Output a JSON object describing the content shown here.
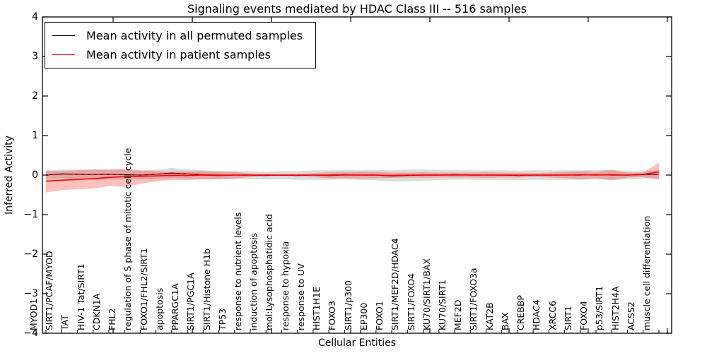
{
  "chart_data": {
    "type": "line",
    "title": "Signaling events mediated by HDAC Class III -- 516 samples",
    "xlabel": "Cellular Entities",
    "ylabel": "Inferred Activity",
    "ylim": [
      -4,
      4
    ],
    "yticks": [
      4,
      3,
      2,
      1,
      0,
      -1,
      -2,
      -3,
      -4
    ],
    "grid": false,
    "legend_position": "upper left",
    "categories": [
      "MYOD1",
      "SIRT1/PCAF/MYOD",
      "TAT",
      "HIV-1 Tat/SIRT1",
      "CDKN1A",
      "FHL2",
      "regulation of S phase of mitotic cell cycle",
      "FOXO1/FHL2/SIRT1",
      "apoptosis",
      "PPARGC1A",
      "SIRT1/PGC1A",
      "SIRT1/Histone H1b",
      "TP53",
      "response to nutrient levels",
      "induction of apoptosis",
      "mol:Lysophosphatidic acid",
      "response to hypoxia",
      "response to UV",
      "HIST1H1E",
      "FOXO3",
      "SIRT1/p300",
      "EP300",
      "FOXO1",
      "SIRT1/MEF2D/HDAC4",
      "SIRT1/FOXO4",
      "KU70/SIRT1/BAX",
      "KU70/SIRT1",
      "MEF2D",
      "SIRT1/FOXO3a",
      "KAT2B",
      "BAX",
      "CREBBP",
      "HDAC4",
      "XRCC6",
      "SIRT1",
      "FOXO4",
      "p53/SIRT1",
      "HIST2H4A",
      "ACSS2",
      "muscle cell differentiation"
    ],
    "series": [
      {
        "name": "Mean activity in all permuted samples",
        "color": "#000000",
        "line_style": "solid",
        "band_color": "rgba(128,128,128,0.28)",
        "values": [
          0.0,
          0.03,
          0.02,
          0.01,
          0.02,
          0.01,
          0.0,
          0.02,
          0.05,
          0.03,
          0.01,
          0.0,
          0.0,
          0.0,
          -0.01,
          0.0,
          -0.01,
          0.0,
          0.0,
          0.01,
          0.0,
          0.0,
          -0.02,
          -0.01,
          0.0,
          0.0,
          0.01,
          0.0,
          0.0,
          0.0,
          -0.01,
          0.0,
          0.0,
          0.0,
          0.0,
          0.01,
          0.0,
          0.0,
          0.01,
          0.02
        ],
        "band_upper": [
          0.1,
          0.14,
          0.14,
          0.14,
          0.15,
          0.13,
          0.11,
          0.14,
          0.18,
          0.15,
          0.12,
          0.1,
          0.1,
          0.1,
          0.09,
          0.1,
          0.1,
          0.12,
          0.12,
          0.13,
          0.12,
          0.13,
          0.12,
          0.14,
          0.14,
          0.13,
          0.13,
          0.12,
          0.12,
          0.12,
          0.11,
          0.12,
          0.12,
          0.12,
          0.12,
          0.13,
          0.12,
          0.11,
          0.11,
          0.12
        ],
        "band_lower": [
          -0.1,
          -0.08,
          -0.1,
          -0.12,
          -0.11,
          -0.11,
          -0.11,
          -0.1,
          -0.08,
          -0.09,
          -0.1,
          -0.1,
          -0.1,
          -0.1,
          -0.11,
          -0.1,
          -0.12,
          -0.12,
          -0.12,
          -0.11,
          -0.12,
          -0.13,
          -0.16,
          -0.16,
          -0.14,
          -0.13,
          -0.11,
          -0.12,
          -0.12,
          -0.12,
          -0.13,
          -0.12,
          -0.12,
          -0.12,
          -0.12,
          -0.11,
          -0.12,
          -0.11,
          -0.09,
          -0.08
        ]
      },
      {
        "name": "Mean activity in patient samples",
        "color": "#ff0000",
        "line_style": "solid",
        "band_color": "rgba(255,0,0,0.25)",
        "values": [
          -0.15,
          -0.13,
          -0.11,
          -0.09,
          -0.06,
          -0.04,
          -0.03,
          -0.02,
          -0.01,
          -0.01,
          0.0,
          -0.01,
          0.0,
          0.0,
          0.0,
          0.0,
          0.0,
          0.0,
          -0.01,
          0.0,
          0.0,
          0.0,
          -0.01,
          0.0,
          0.0,
          0.0,
          0.0,
          0.0,
          0.0,
          0.0,
          0.0,
          0.0,
          0.0,
          0.0,
          0.01,
          0.0,
          0.01,
          0.0,
          0.02,
          0.08
        ],
        "band_upper": [
          0.12,
          0.1,
          0.12,
          0.14,
          0.13,
          0.17,
          0.12,
          0.1,
          0.09,
          0.1,
          0.1,
          0.09,
          0.08,
          0.04,
          0.03,
          0.03,
          0.03,
          0.05,
          0.07,
          0.08,
          0.09,
          0.08,
          0.06,
          0.06,
          0.07,
          0.06,
          0.06,
          0.06,
          0.07,
          0.06,
          0.06,
          0.05,
          0.06,
          0.08,
          0.1,
          0.08,
          0.14,
          0.06,
          0.06,
          0.32
        ],
        "band_lower": [
          -0.44,
          -0.38,
          -0.36,
          -0.34,
          -0.28,
          -0.3,
          -0.22,
          -0.16,
          -0.12,
          -0.13,
          -0.11,
          -0.11,
          -0.09,
          -0.05,
          -0.03,
          -0.03,
          -0.03,
          -0.05,
          -0.08,
          -0.08,
          -0.09,
          -0.08,
          -0.07,
          -0.06,
          -0.07,
          -0.06,
          -0.06,
          -0.06,
          -0.07,
          -0.06,
          -0.06,
          -0.05,
          -0.06,
          -0.08,
          -0.1,
          -0.08,
          -0.13,
          -0.06,
          -0.05,
          -0.12
        ]
      },
      {
        "name": "",
        "color": "#ff0000",
        "line_style": "dashed",
        "values": [
          0.0,
          0.02,
          0.02,
          0.01,
          0.02,
          0.01,
          0.0,
          0.02,
          0.04,
          0.03,
          0.01,
          0.0,
          0.0,
          0.0,
          -0.01,
          0.0,
          -0.01,
          0.0,
          0.0,
          0.01,
          0.0,
          0.0,
          -0.02,
          -0.01,
          0.0,
          0.0,
          0.01,
          0.0,
          0.0,
          0.0,
          -0.01,
          0.0,
          0.0,
          0.0,
          0.0,
          0.01,
          0.0,
          0.0,
          0.01,
          0.02
        ]
      }
    ]
  }
}
